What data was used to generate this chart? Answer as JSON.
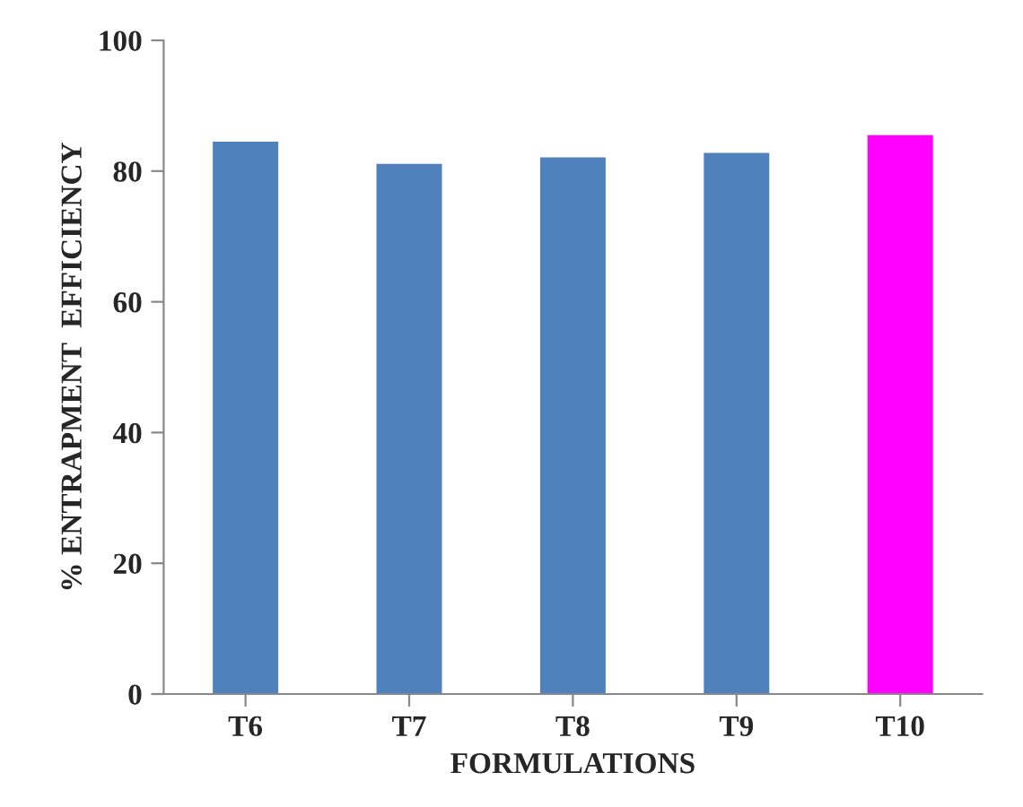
{
  "chart_data": {
    "type": "bar",
    "xlabel": "FORMULATIONS",
    "ylabel": "% ENTRAPMENT  EFFICIENCY",
    "categories": [
      "T6",
      "T7",
      "T8",
      "T9",
      "T10"
    ],
    "values": [
      84.5,
      81.1,
      82.1,
      82.8,
      85.5
    ],
    "colors": [
      "#4f81bd",
      "#4f81bd",
      "#4f81bd",
      "#4f81bd",
      "#ff00ff"
    ],
    "ylim": [
      0,
      100
    ],
    "yticks": [
      0,
      20,
      40,
      60,
      80,
      100
    ],
    "grid": false
  }
}
